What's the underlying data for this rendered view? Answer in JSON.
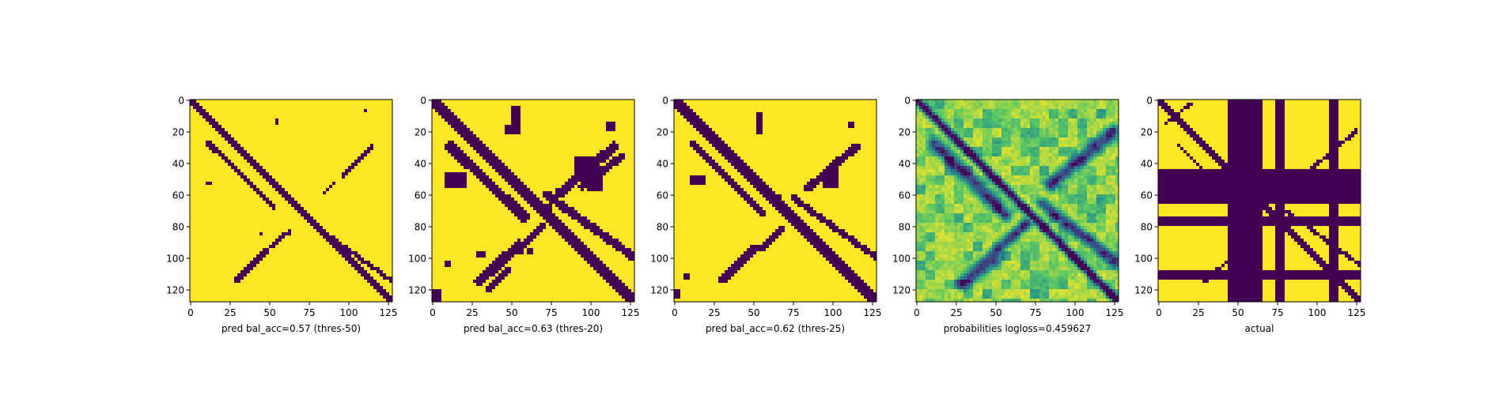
{
  "chart_data": [
    {
      "type": "heatmap",
      "panel": "binary",
      "xlabel": "pred bal_acc=0.57 (thres-50)",
      "xlim": [
        0,
        128
      ],
      "ylim": [
        0,
        128
      ],
      "xticks": [
        0,
        25,
        50,
        75,
        100,
        125
      ],
      "yticks": [
        0,
        20,
        40,
        60,
        80,
        100,
        120
      ],
      "colormap": "viridis",
      "main_diagonal_width": 2.5,
      "features": [
        {
          "kind": "band",
          "from": [
            12,
            28
          ],
          "to": [
            53,
            68
          ],
          "width": 1.5
        },
        {
          "kind": "band",
          "from": [
            86,
            85
          ],
          "to": [
            128,
            115
          ],
          "width": 1.4
        },
        {
          "kind": "band",
          "from": [
            115,
            30
          ],
          "to": [
            97,
            48
          ],
          "width": 1.6
        },
        {
          "kind": "band",
          "from": [
            92,
            52
          ],
          "to": [
            85,
            59
          ],
          "width": 1.2
        },
        {
          "kind": "band",
          "from": [
            30,
            114
          ],
          "to": [
            48,
            96
          ],
          "width": 1.6
        },
        {
          "kind": "band",
          "from": [
            52,
            93
          ],
          "to": [
            60,
            85
          ],
          "width": 1.2
        },
        {
          "kind": "rect",
          "x": 54,
          "y": 12,
          "w": 2,
          "h": 4
        },
        {
          "kind": "rect",
          "x": 10,
          "y": 53,
          "w": 5,
          "h": 2
        },
        {
          "kind": "rect",
          "x": 45,
          "y": 84,
          "w": 2,
          "h": 2
        },
        {
          "kind": "rect",
          "x": 63,
          "y": 83,
          "w": 2,
          "h": 3
        },
        {
          "kind": "rect",
          "x": 110,
          "y": 6,
          "w": 2,
          "h": 2
        }
      ]
    },
    {
      "type": "heatmap",
      "panel": "binary",
      "xlabel": "pred bal_acc=0.63 (thres-20)",
      "xlim": [
        0,
        128
      ],
      "ylim": [
        0,
        128
      ],
      "xticks": [
        0,
        25,
        50,
        75,
        100,
        125
      ],
      "yticks": [
        0,
        20,
        40,
        60,
        80,
        100,
        120
      ],
      "colormap": "viridis",
      "main_diagonal_width": 3.5,
      "features": [
        {
          "kind": "band",
          "from": [
            12,
            30
          ],
          "to": [
            58,
            74
          ],
          "width": 3.2
        },
        {
          "kind": "band",
          "from": [
            72,
            60
          ],
          "to": [
            128,
            100
          ],
          "width": 2.6
        },
        {
          "kind": "band",
          "from": [
            115,
            30
          ],
          "to": [
            80,
            60
          ],
          "width": 3.0
        },
        {
          "kind": "band",
          "from": [
            120,
            36
          ],
          "to": [
            95,
            55
          ],
          "width": 2.4
        },
        {
          "kind": "band",
          "from": [
            70,
            80
          ],
          "to": [
            55,
            96
          ],
          "width": 2.2
        },
        {
          "kind": "band",
          "from": [
            30,
            115
          ],
          "to": [
            55,
            92
          ],
          "width": 3.2
        },
        {
          "kind": "band",
          "from": [
            35,
            120
          ],
          "to": [
            48,
            108
          ],
          "width": 2.2
        },
        {
          "kind": "rect",
          "x": 50,
          "y": 5,
          "w": 6,
          "h": 18
        },
        {
          "kind": "rect",
          "x": 8,
          "y": 47,
          "w": 15,
          "h": 10
        },
        {
          "kind": "rect",
          "x": 110,
          "y": 14,
          "w": 6,
          "h": 6
        },
        {
          "kind": "rect",
          "x": 90,
          "y": 37,
          "w": 14,
          "h": 10
        },
        {
          "kind": "rect",
          "x": 98,
          "y": 42,
          "w": 10,
          "h": 16
        },
        {
          "kind": "rect",
          "x": 46,
          "y": 16,
          "w": 6,
          "h": 6
        },
        {
          "kind": "rect",
          "x": 28,
          "y": 96,
          "w": 6,
          "h": 4
        },
        {
          "kind": "rect",
          "x": 8,
          "y": 102,
          "w": 5,
          "h": 4
        },
        {
          "kind": "rect",
          "x": 0,
          "y": 120,
          "w": 6,
          "h": 8
        },
        {
          "kind": "rect",
          "x": 60,
          "y": 95,
          "w": 4,
          "h": 4
        },
        {
          "kind": "rect",
          "x": 70,
          "y": 66,
          "w": 6,
          "h": 6
        }
      ]
    },
    {
      "type": "heatmap",
      "panel": "binary",
      "xlabel": "pred bal_acc=0.62 (thres-25)",
      "xlim": [
        0,
        128
      ],
      "ylim": [
        0,
        128
      ],
      "xticks": [
        0,
        25,
        50,
        75,
        100,
        125
      ],
      "yticks": [
        0,
        20,
        40,
        60,
        80,
        100,
        120
      ],
      "colormap": "viridis",
      "main_diagonal_width": 3.0,
      "features": [
        {
          "kind": "band",
          "from": [
            12,
            28
          ],
          "to": [
            56,
            72
          ],
          "width": 2.6
        },
        {
          "kind": "band",
          "from": [
            75,
            62
          ],
          "to": [
            128,
            100
          ],
          "width": 2.0
        },
        {
          "kind": "band",
          "from": [
            115,
            30
          ],
          "to": [
            85,
            56
          ],
          "width": 2.6
        },
        {
          "kind": "band",
          "from": [
            68,
            82
          ],
          "to": [
            55,
            95
          ],
          "width": 1.8
        },
        {
          "kind": "band",
          "from": [
            30,
            114
          ],
          "to": [
            52,
            94
          ],
          "width": 2.8
        },
        {
          "kind": "rect",
          "x": 52,
          "y": 8,
          "w": 5,
          "h": 14
        },
        {
          "kind": "rect",
          "x": 10,
          "y": 48,
          "w": 10,
          "h": 7
        },
        {
          "kind": "rect",
          "x": 110,
          "y": 14,
          "w": 4,
          "h": 5
        },
        {
          "kind": "rect",
          "x": 94,
          "y": 44,
          "w": 10,
          "h": 12
        },
        {
          "kind": "rect",
          "x": 0,
          "y": 120,
          "w": 4,
          "h": 6
        },
        {
          "kind": "rect",
          "x": 6,
          "y": 110,
          "w": 4,
          "h": 4
        },
        {
          "kind": "rect",
          "x": 65,
          "y": 60,
          "w": 4,
          "h": 4
        }
      ]
    },
    {
      "type": "heatmap",
      "panel": "probabilities",
      "xlabel": "probabilities logloss=0.459627",
      "xlim": [
        0,
        128
      ],
      "ylim": [
        0,
        128
      ],
      "xticks": [
        0,
        25,
        50,
        75,
        100,
        125
      ],
      "yticks": [
        0,
        20,
        40,
        60,
        80,
        100,
        120
      ],
      "colormap": "viridis",
      "main_diagonal_width": 2.5,
      "features": [
        {
          "kind": "band",
          "from": [
            12,
            28
          ],
          "to": [
            56,
            72
          ],
          "width": 2.0
        },
        {
          "kind": "band",
          "from": [
            80,
            66
          ],
          "to": [
            128,
            104
          ],
          "width": 1.6
        },
        {
          "kind": "band",
          "from": [
            125,
            20
          ],
          "to": [
            85,
            54
          ],
          "width": 2.0
        },
        {
          "kind": "band",
          "from": [
            70,
            78
          ],
          "to": [
            40,
            106
          ],
          "width": 1.6
        },
        {
          "kind": "band",
          "from": [
            30,
            116
          ],
          "to": [
            50,
            100
          ],
          "width": 2.0
        }
      ]
    },
    {
      "type": "heatmap",
      "panel": "binary",
      "xlabel": "actual",
      "xlim": [
        0,
        128
      ],
      "ylim": [
        0,
        128
      ],
      "xticks": [
        0,
        25,
        50,
        75,
        100,
        125
      ],
      "yticks": [
        0,
        20,
        40,
        60,
        80,
        100,
        120
      ],
      "colormap": "viridis",
      "main_diagonal_width": 1.8,
      "features": [
        {
          "kind": "vbar",
          "x0": 44,
          "x1": 66
        },
        {
          "kind": "vbar",
          "x0": 75,
          "x1": 80
        },
        {
          "kind": "vbar",
          "x0": 108,
          "x1": 115
        },
        {
          "kind": "hbar",
          "y0": 44,
          "y1": 66
        },
        {
          "kind": "hbar",
          "y0": 75,
          "y1": 80
        },
        {
          "kind": "hbar",
          "y0": 108,
          "y1": 115
        },
        {
          "kind": "band",
          "from": [
            12,
            28
          ],
          "to": [
            44,
            60
          ],
          "width": 1.2
        },
        {
          "kind": "band",
          "from": [
            80,
            70
          ],
          "to": [
            128,
            105
          ],
          "width": 1.2
        },
        {
          "kind": "band",
          "from": [
            125,
            20
          ],
          "to": [
            90,
            50
          ],
          "width": 1.2
        },
        {
          "kind": "band",
          "from": [
            30,
            115
          ],
          "to": [
            44,
            102
          ],
          "width": 1.2
        },
        {
          "kind": "band",
          "from": [
            20,
            3
          ],
          "to": [
            5,
            15
          ],
          "width": 1.0
        }
      ]
    }
  ]
}
